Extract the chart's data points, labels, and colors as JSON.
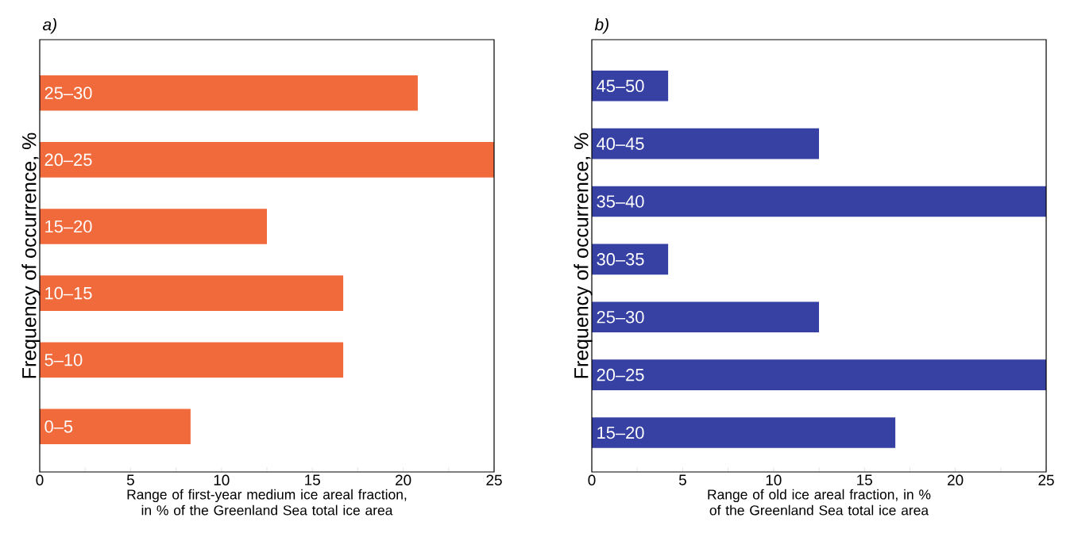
{
  "chart_data": [
    {
      "type": "bar",
      "orientation": "horizontal",
      "title": "a)",
      "xlabel": "Range of first-year medium ice areal fraction, in % of the Greenland Sea total ice area",
      "ylabel": "Frequency of occurrence, %",
      "categories": [
        "25–30",
        "20–25",
        "15–20",
        "10–15",
        "5–10",
        "0–5"
      ],
      "values": [
        20.8,
        25,
        12.5,
        16.7,
        16.7,
        8.3
      ],
      "color": "#f06a3c",
      "xlim": [
        0,
        25
      ],
      "xticks": [
        0,
        {
          "value": 2.5,
          "label": null
        },
        5,
        {
          "value": 7.5,
          "label": null
        },
        10,
        {
          "value": 12.5,
          "label": null
        },
        15,
        {
          "value": 17.5,
          "label": null
        },
        20,
        {
          "value": 22.5,
          "label": null
        },
        25
      ]
    },
    {
      "type": "bar",
      "orientation": "horizontal",
      "title": "b)",
      "xlabel": "Range of old ice areal fraction, in % of the Greenland Sea total ice area",
      "ylabel": "Frequency of occurrence, %",
      "categories": [
        "45–50",
        "40–45",
        "35–40",
        "30–35",
        "25–30",
        "20–25",
        "15–20"
      ],
      "values": [
        4.2,
        12.5,
        25,
        4.2,
        12.5,
        25,
        16.7
      ],
      "color": "#3641a3",
      "xlim": [
        0,
        25
      ],
      "xticks": [
        0,
        {
          "value": 2.5,
          "label": null
        },
        5,
        {
          "value": 7.5,
          "label": null
        },
        10,
        {
          "value": 12.5,
          "label": null
        },
        15,
        {
          "value": 17.5,
          "label": null
        },
        20,
        {
          "value": 22.5,
          "label": null
        },
        25
      ]
    }
  ]
}
